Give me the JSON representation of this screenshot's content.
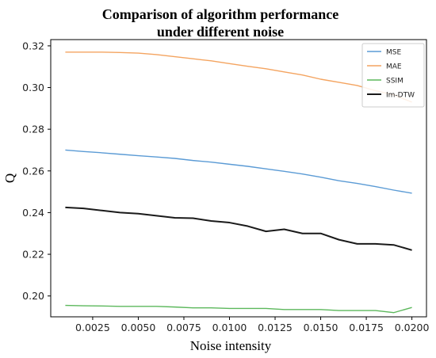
{
  "chart_data": {
    "type": "line",
    "title_lines": [
      "Comparison of algorithm performance",
      "under different noise"
    ],
    "xlabel": "Noise intensity",
    "ylabel": "Q",
    "xlim": [
      0.0002,
      0.0208
    ],
    "ylim": [
      0.19,
      0.323
    ],
    "xticks": [
      0.0025,
      0.005,
      0.0075,
      0.01,
      0.0125,
      0.015,
      0.0175,
      0.02
    ],
    "xtick_labels": [
      "0.0025",
      "0.0050",
      "0.0075",
      "0.0100",
      "0.0125",
      "0.0150",
      "0.0175",
      "0.0200"
    ],
    "yticks": [
      0.2,
      0.22,
      0.24,
      0.26,
      0.28,
      0.3,
      0.32
    ],
    "ytick_labels": [
      "0.20",
      "0.22",
      "0.24",
      "0.26",
      "0.28",
      "0.30",
      "0.32"
    ],
    "grid": false,
    "legend_position": "top-right",
    "x": [
      0.001,
      0.002,
      0.003,
      0.004,
      0.005,
      0.006,
      0.007,
      0.008,
      0.009,
      0.01,
      0.011,
      0.012,
      0.013,
      0.014,
      0.015,
      0.016,
      0.017,
      0.018,
      0.019,
      0.02
    ],
    "series": [
      {
        "name": "MSE",
        "color": "#5b9bd5",
        "values": [
          0.27,
          0.2693,
          0.2687,
          0.268,
          0.2673,
          0.2667,
          0.266,
          0.265,
          0.2642,
          0.2632,
          0.2622,
          0.261,
          0.2598,
          0.2585,
          0.257,
          0.2553,
          0.254,
          0.2525,
          0.2508,
          0.2493
        ]
      },
      {
        "name": "MAE",
        "color": "#f4a460",
        "values": [
          0.317,
          0.317,
          0.317,
          0.3168,
          0.3165,
          0.3158,
          0.3148,
          0.3138,
          0.3128,
          0.3115,
          0.3102,
          0.309,
          0.3075,
          0.306,
          0.304,
          0.3025,
          0.301,
          0.2985,
          0.2965,
          0.293
        ]
      },
      {
        "name": "SSIM",
        "color": "#5cb85c",
        "values": [
          0.1955,
          0.1953,
          0.1952,
          0.195,
          0.195,
          0.195,
          0.1947,
          0.1943,
          0.1943,
          0.194,
          0.194,
          0.194,
          0.1935,
          0.1935,
          0.1935,
          0.193,
          0.193,
          0.193,
          0.192,
          0.1945
        ]
      },
      {
        "name": "Im-DTW",
        "color": "#1a1a1a",
        "values": [
          0.2425,
          0.242,
          0.241,
          0.24,
          0.2395,
          0.2385,
          0.2375,
          0.2373,
          0.236,
          0.2352,
          0.2335,
          0.231,
          0.232,
          0.23,
          0.23,
          0.227,
          0.225,
          0.225,
          0.2245,
          0.222
        ]
      }
    ]
  }
}
